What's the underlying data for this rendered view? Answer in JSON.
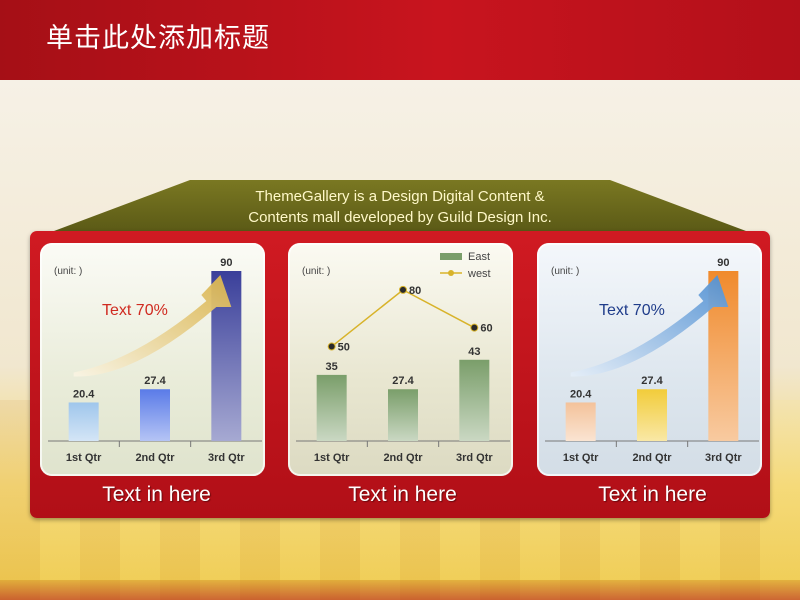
{
  "slide_title": "单击此处添加标题",
  "banner": {
    "line1": "ThemeGallery  is a Design Digital Content &",
    "line2": "Contents mall developed by Guild Design Inc."
  },
  "captions": [
    "Text in here",
    "Text in here",
    "Text in here"
  ],
  "colors": {
    "header_red": "#c8141e",
    "frame_red": "#c01520",
    "roof_olive": "#6b6a1e"
  },
  "chart_data": [
    {
      "type": "bar",
      "unit_label": "(unit:   )",
      "categories": [
        "1st Qtr",
        "2nd Qtr",
        "3rd Qtr"
      ],
      "values": [
        20.4,
        27.4,
        90
      ],
      "value_labels": [
        "20.4",
        "27.4",
        "90"
      ],
      "annotation": "Text 70%",
      "ylim": [
        0,
        90
      ],
      "bar_colors": [
        "#9fc6ec",
        "#5a7be8",
        "#3a3f9a"
      ],
      "arrow_color": "#d9b34a"
    },
    {
      "type": "bar",
      "unit_label": "(unit:   )",
      "categories": [
        "1st Qtr",
        "2nd Qtr",
        "3rd Qtr"
      ],
      "series": [
        {
          "name": "East",
          "kind": "bar",
          "values": [
            35,
            27.4,
            43
          ],
          "value_labels": [
            "35",
            "27.4",
            "43"
          ]
        },
        {
          "name": "west",
          "kind": "line",
          "values": [
            50,
            80,
            60
          ],
          "value_labels": [
            "50",
            "80",
            "60"
          ]
        }
      ],
      "ylim": [
        0,
        90
      ],
      "bar_color": "#7a9e6a",
      "line_color": "#d8b32a"
    },
    {
      "type": "bar",
      "unit_label": "(unit:   )",
      "categories": [
        "1st Qtr",
        "2nd Qtr",
        "3rd Qtr"
      ],
      "values": [
        20.4,
        27.4,
        90
      ],
      "value_labels": [
        "20.4",
        "27.4",
        "90"
      ],
      "annotation": "Text 70%",
      "ylim": [
        0,
        90
      ],
      "bar_colors": [
        "#f4c29a",
        "#f2cc3a",
        "#f08a2c"
      ],
      "arrow_color": "#4f8fd2"
    }
  ]
}
